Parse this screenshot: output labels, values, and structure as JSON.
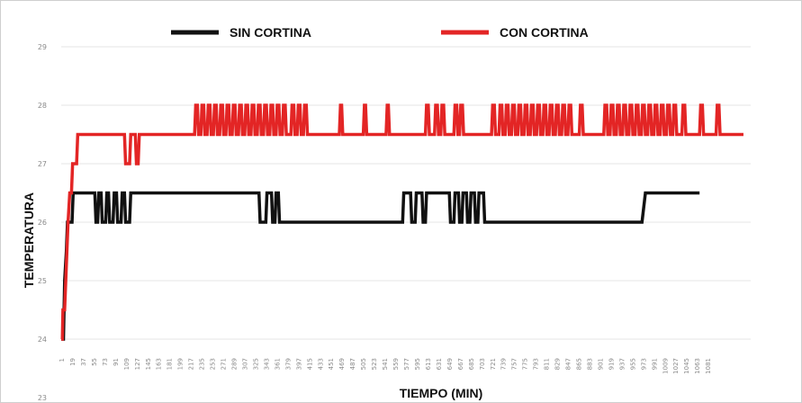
{
  "chart_data": {
    "type": "line",
    "title": "",
    "xlabel": "TIEMPO (MIN)",
    "ylabel": "TEMPERATURA",
    "ylim": [
      23,
      29
    ],
    "yticks": [
      "29",
      "28",
      "27",
      "26",
      "25",
      "24",
      "23"
    ],
    "grid": true,
    "legend_position": "top",
    "x_ticks": [
      "1",
      "19",
      "37",
      "55",
      "73",
      "91",
      "109",
      "127",
      "145",
      "163",
      "181",
      "199",
      "217",
      "235",
      "253",
      "271",
      "289",
      "307",
      "325",
      "343",
      "361",
      "379",
      "397",
      "415",
      "433",
      "451",
      "469",
      "487",
      "505",
      "523",
      "541",
      "559",
      "577",
      "595",
      "613",
      "631",
      "649",
      "667",
      "685",
      "703",
      "721",
      "739",
      "757",
      "775",
      "793",
      "811",
      "829",
      "847",
      "865",
      "883",
      "901",
      "919",
      "937",
      "955",
      "973",
      "991",
      "1009",
      "1027",
      "1045",
      "1063",
      "1081"
    ],
    "x_max": 1081,
    "series": [
      {
        "name": "SIN CORTINA",
        "color": "#111111",
        "points": [
          [
            1,
            24
          ],
          [
            5,
            24
          ],
          [
            7,
            25
          ],
          [
            10,
            25.5
          ],
          [
            12,
            26
          ],
          [
            20,
            26
          ],
          [
            22,
            26.5
          ],
          [
            60,
            26.5
          ],
          [
            62,
            26
          ],
          [
            65,
            26
          ],
          [
            67,
            26.5
          ],
          [
            71,
            26.5
          ],
          [
            73,
            26
          ],
          [
            79,
            26
          ],
          [
            81,
            26.5
          ],
          [
            84,
            26.5
          ],
          [
            86,
            26
          ],
          [
            92,
            26
          ],
          [
            94,
            26.5
          ],
          [
            98,
            26.5
          ],
          [
            100,
            26
          ],
          [
            106,
            26
          ],
          [
            108,
            26.5
          ],
          [
            112,
            26.5
          ],
          [
            114,
            26
          ],
          [
            121,
            26
          ],
          [
            123,
            26.5
          ],
          [
            348,
            26.5
          ],
          [
            350,
            26
          ],
          [
            360,
            26
          ],
          [
            362,
            26.5
          ],
          [
            370,
            26.5
          ],
          [
            372,
            26
          ],
          [
            376,
            26
          ],
          [
            378,
            26.5
          ],
          [
            382,
            26.5
          ],
          [
            384,
            26
          ],
          [
            600,
            26
          ],
          [
            602,
            26.5
          ],
          [
            614,
            26.5
          ],
          [
            616,
            26
          ],
          [
            622,
            26
          ],
          [
            624,
            26.5
          ],
          [
            634,
            26.5
          ],
          [
            636,
            26
          ],
          [
            640,
            26
          ],
          [
            642,
            26.5
          ],
          [
            682,
            26.5
          ],
          [
            684,
            26
          ],
          [
            690,
            26
          ],
          [
            692,
            26.5
          ],
          [
            698,
            26.5
          ],
          [
            700,
            26
          ],
          [
            704,
            26
          ],
          [
            706,
            26.5
          ],
          [
            712,
            26.5
          ],
          [
            714,
            26
          ],
          [
            718,
            26
          ],
          [
            720,
            26.5
          ],
          [
            726,
            26.5
          ],
          [
            728,
            26
          ],
          [
            732,
            26
          ],
          [
            734,
            26.5
          ],
          [
            742,
            26.5
          ],
          [
            744,
            26
          ],
          [
            1020,
            26
          ],
          [
            1026,
            26.5
          ],
          [
            1121,
            26.5
          ]
        ]
      },
      {
        "name": "CON CORTINA",
        "color": "#e32525",
        "points": [
          [
            1,
            24
          ],
          [
            3,
            24
          ],
          [
            4,
            24.5
          ],
          [
            7,
            24.5
          ],
          [
            9,
            25
          ],
          [
            11,
            25.5
          ],
          [
            13,
            26
          ],
          [
            16,
            26.5
          ],
          [
            19,
            26.5
          ],
          [
            21,
            27
          ],
          [
            28,
            27
          ],
          [
            30,
            27.5
          ],
          [
            112,
            27.5
          ],
          [
            114,
            27
          ],
          [
            121,
            27
          ],
          [
            123,
            27.5
          ],
          [
            131,
            27.5
          ],
          [
            133,
            27
          ],
          [
            136,
            27
          ],
          [
            138,
            27.5
          ],
          [
            235,
            27.5
          ],
          [
            237,
            28
          ],
          [
            240,
            28
          ],
          [
            242,
            27.5
          ],
          [
            246,
            27.5
          ],
          [
            248,
            28
          ],
          [
            251,
            28
          ],
          [
            253,
            27.5
          ],
          [
            257,
            27.5
          ],
          [
            259,
            28
          ],
          [
            262,
            28
          ],
          [
            264,
            27.5
          ],
          [
            268,
            27.5
          ],
          [
            270,
            28
          ],
          [
            273,
            28
          ],
          [
            275,
            27.5
          ],
          [
            279,
            27.5
          ],
          [
            281,
            28
          ],
          [
            284,
            28
          ],
          [
            286,
            27.5
          ],
          [
            290,
            27.5
          ],
          [
            292,
            28
          ],
          [
            295,
            28
          ],
          [
            297,
            27.5
          ],
          [
            301,
            27.5
          ],
          [
            303,
            28
          ],
          [
            306,
            28
          ],
          [
            308,
            27.5
          ],
          [
            312,
            27.5
          ],
          [
            314,
            28
          ],
          [
            317,
            28
          ],
          [
            319,
            27.5
          ],
          [
            323,
            27.5
          ],
          [
            325,
            28
          ],
          [
            328,
            28
          ],
          [
            330,
            27.5
          ],
          [
            334,
            27.5
          ],
          [
            336,
            28
          ],
          [
            339,
            28
          ],
          [
            341,
            27.5
          ],
          [
            345,
            27.5
          ],
          [
            347,
            28
          ],
          [
            350,
            28
          ],
          [
            352,
            27.5
          ],
          [
            356,
            27.5
          ],
          [
            358,
            28
          ],
          [
            361,
            28
          ],
          [
            363,
            27.5
          ],
          [
            367,
            27.5
          ],
          [
            369,
            28
          ],
          [
            372,
            28
          ],
          [
            374,
            27.5
          ],
          [
            378,
            27.5
          ],
          [
            380,
            28
          ],
          [
            383,
            28
          ],
          [
            385,
            27.5
          ],
          [
            389,
            27.5
          ],
          [
            391,
            28
          ],
          [
            394,
            28
          ],
          [
            396,
            27.5
          ],
          [
            404,
            27.5
          ],
          [
            406,
            28
          ],
          [
            409,
            28
          ],
          [
            411,
            27.5
          ],
          [
            415,
            27.5
          ],
          [
            417,
            28
          ],
          [
            420,
            28
          ],
          [
            422,
            27.5
          ],
          [
            426,
            27.5
          ],
          [
            428,
            28
          ],
          [
            431,
            28
          ],
          [
            433,
            27.5
          ],
          [
            489,
            27.5
          ],
          [
            491,
            28
          ],
          [
            493,
            28
          ],
          [
            495,
            27.5
          ],
          [
            531,
            27.5
          ],
          [
            533,
            28
          ],
          [
            535,
            28
          ],
          [
            537,
            27.5
          ],
          [
            571,
            27.5
          ],
          [
            573,
            28
          ],
          [
            575,
            28
          ],
          [
            577,
            27.5
          ],
          [
            640,
            27.5
          ],
          [
            642,
            28
          ],
          [
            645,
            28
          ],
          [
            647,
            27.5
          ],
          [
            656,
            27.5
          ],
          [
            658,
            28
          ],
          [
            661,
            28
          ],
          [
            663,
            27.5
          ],
          [
            667,
            27.5
          ],
          [
            669,
            28
          ],
          [
            672,
            28
          ],
          [
            674,
            27.5
          ],
          [
            690,
            27.5
          ],
          [
            692,
            28
          ],
          [
            695,
            28
          ],
          [
            697,
            27.5
          ],
          [
            700,
            27.5
          ],
          [
            702,
            28
          ],
          [
            705,
            28
          ],
          [
            707,
            27.5
          ],
          [
            756,
            27.5
          ],
          [
            758,
            28
          ],
          [
            761,
            28
          ],
          [
            763,
            27.5
          ],
          [
            769,
            27.5
          ],
          [
            771,
            28
          ],
          [
            774,
            28
          ],
          [
            776,
            27.5
          ],
          [
            780,
            27.5
          ],
          [
            782,
            28
          ],
          [
            785,
            28
          ],
          [
            787,
            27.5
          ],
          [
            791,
            27.5
          ],
          [
            793,
            28
          ],
          [
            796,
            28
          ],
          [
            798,
            27.5
          ],
          [
            802,
            27.5
          ],
          [
            804,
            28
          ],
          [
            807,
            28
          ],
          [
            809,
            27.5
          ],
          [
            813,
            27.5
          ],
          [
            815,
            28
          ],
          [
            818,
            28
          ],
          [
            820,
            27.5
          ],
          [
            824,
            27.5
          ],
          [
            826,
            28
          ],
          [
            829,
            28
          ],
          [
            831,
            27.5
          ],
          [
            835,
            27.5
          ],
          [
            837,
            28
          ],
          [
            840,
            28
          ],
          [
            842,
            27.5
          ],
          [
            846,
            27.5
          ],
          [
            848,
            28
          ],
          [
            851,
            28
          ],
          [
            853,
            27.5
          ],
          [
            857,
            27.5
          ],
          [
            859,
            28
          ],
          [
            862,
            28
          ],
          [
            864,
            27.5
          ],
          [
            868,
            27.5
          ],
          [
            870,
            28
          ],
          [
            873,
            28
          ],
          [
            875,
            27.5
          ],
          [
            879,
            27.5
          ],
          [
            881,
            28
          ],
          [
            884,
            28
          ],
          [
            886,
            27.5
          ],
          [
            890,
            27.5
          ],
          [
            892,
            28
          ],
          [
            895,
            28
          ],
          [
            897,
            27.5
          ],
          [
            910,
            27.5
          ],
          [
            912,
            28
          ],
          [
            915,
            28
          ],
          [
            917,
            27.5
          ],
          [
            953,
            27.5
          ],
          [
            955,
            28
          ],
          [
            958,
            28
          ],
          [
            960,
            27.5
          ],
          [
            964,
            27.5
          ],
          [
            966,
            28
          ],
          [
            969,
            28
          ],
          [
            971,
            27.5
          ],
          [
            975,
            27.5
          ],
          [
            977,
            28
          ],
          [
            980,
            28
          ],
          [
            982,
            27.5
          ],
          [
            986,
            27.5
          ],
          [
            988,
            28
          ],
          [
            991,
            28
          ],
          [
            993,
            27.5
          ],
          [
            997,
            27.5
          ],
          [
            999,
            28
          ],
          [
            1002,
            28
          ],
          [
            1004,
            27.5
          ],
          [
            1008,
            27.5
          ],
          [
            1010,
            28
          ],
          [
            1013,
            28
          ],
          [
            1015,
            27.5
          ],
          [
            1019,
            27.5
          ],
          [
            1021,
            28
          ],
          [
            1024,
            28
          ],
          [
            1026,
            27.5
          ],
          [
            1030,
            27.5
          ],
          [
            1032,
            28
          ],
          [
            1035,
            28
          ],
          [
            1037,
            27.5
          ],
          [
            1041,
            27.5
          ],
          [
            1043,
            28
          ],
          [
            1046,
            28
          ],
          [
            1048,
            27.5
          ],
          [
            1052,
            27.5
          ],
          [
            1054,
            28
          ],
          [
            1057,
            28
          ],
          [
            1059,
            27.5
          ],
          [
            1063,
            27.5
          ],
          [
            1065,
            28
          ],
          [
            1068,
            28
          ],
          [
            1070,
            27.5
          ],
          [
            1074,
            27.5
          ],
          [
            1076,
            28
          ],
          [
            1079,
            28
          ],
          [
            1081,
            27.5
          ],
          [
            1090,
            27.5
          ],
          [
            1092,
            28
          ],
          [
            1095,
            28
          ],
          [
            1097,
            27.5
          ],
          [
            1121,
            27.5
          ],
          [
            1123,
            28
          ],
          [
            1126,
            28
          ],
          [
            1128,
            27.5
          ],
          [
            1150,
            27.5
          ],
          [
            1152,
            28
          ],
          [
            1155,
            28
          ],
          [
            1157,
            27.5
          ],
          [
            1198,
            27.5
          ]
        ]
      }
    ]
  }
}
